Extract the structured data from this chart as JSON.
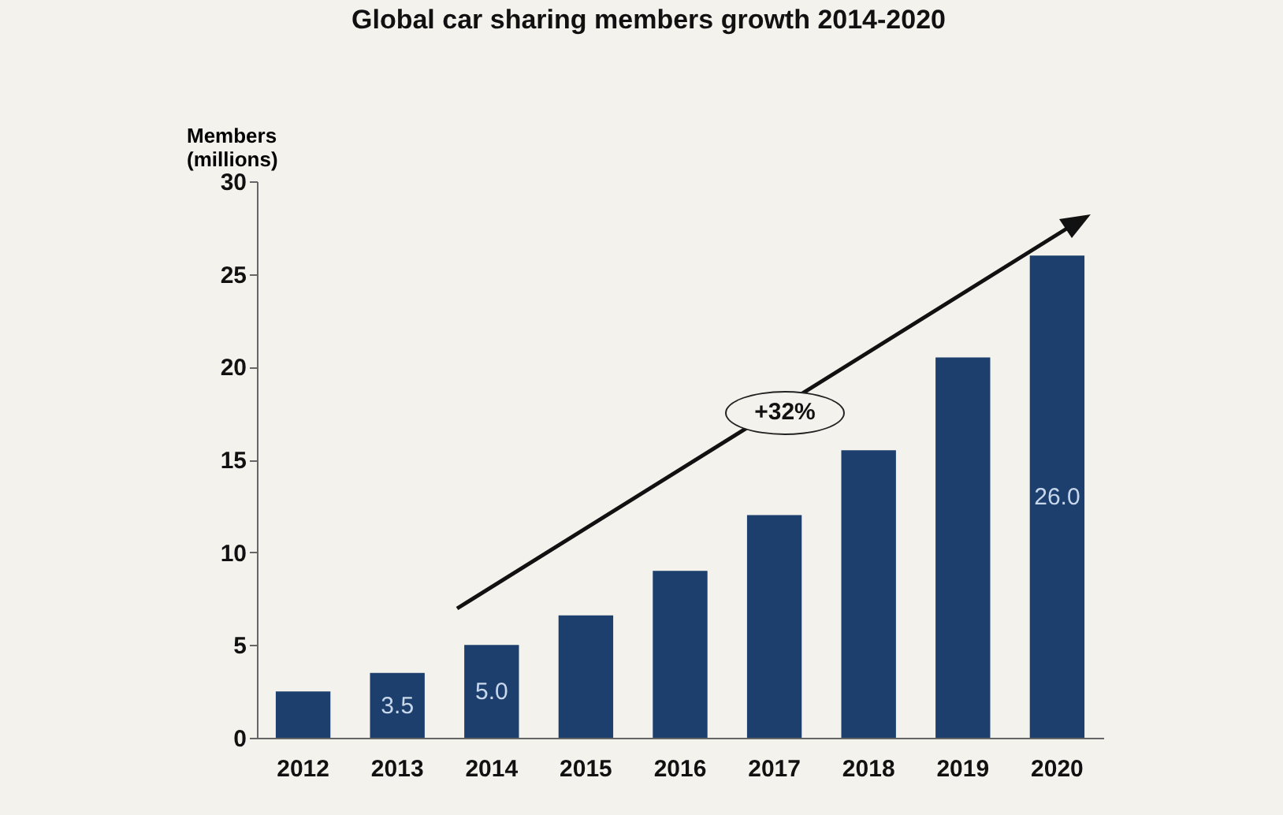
{
  "chart_data": {
    "type": "bar",
    "title": "Global car sharing members growth 2014-2020",
    "ylabel": "Members (millions)",
    "categories": [
      "2012",
      "2013",
      "2014",
      "2015",
      "2016",
      "2017",
      "2018",
      "2019",
      "2020"
    ],
    "values": [
      2.5,
      3.5,
      5.0,
      6.6,
      9.0,
      12.0,
      15.5,
      20.5,
      26.0
    ],
    "value_labels": [
      null,
      "3.5",
      "5.0",
      null,
      null,
      null,
      null,
      null,
      "26.0"
    ],
    "color": "#1c3f6e",
    "ylim": [
      0,
      30
    ],
    "yticks": [
      0,
      5,
      10,
      15,
      20,
      25,
      30
    ],
    "grid": false,
    "annotations": [
      "+32%"
    ]
  }
}
